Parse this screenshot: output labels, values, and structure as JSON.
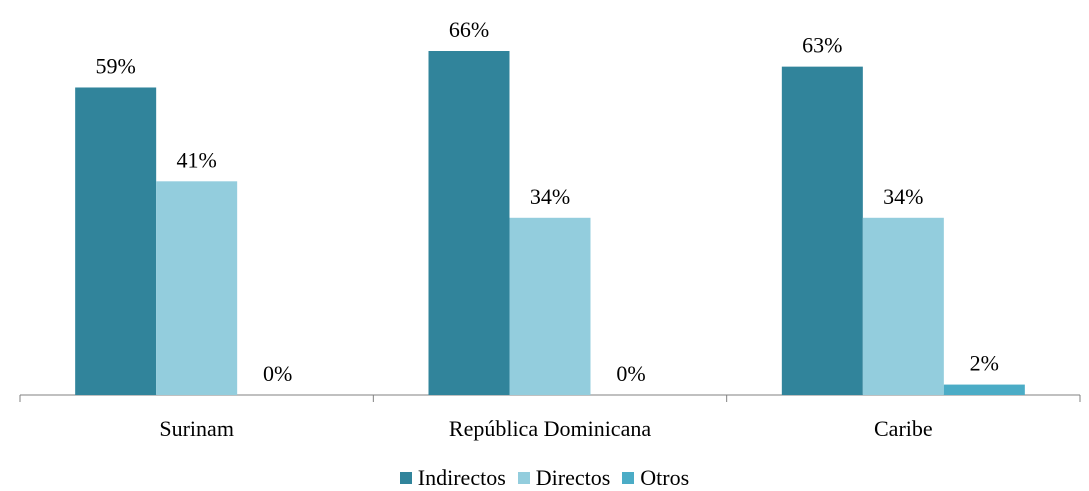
{
  "chart_data": {
    "type": "bar",
    "categories": [
      "Surinam",
      "República Dominicana",
      "Caribe"
    ],
    "series": [
      {
        "name": "Indirectos",
        "values": [
          59,
          66,
          63
        ],
        "labels": [
          "59%",
          "66%",
          "63%"
        ],
        "color": "#31849B"
      },
      {
        "name": "Directos",
        "values": [
          41,
          34,
          34
        ],
        "labels": [
          "41%",
          "34%",
          "34%"
        ],
        "color": "#93CDDD"
      },
      {
        "name": "Otros",
        "values": [
          0,
          0,
          2
        ],
        "labels": [
          "0%",
          "0%",
          "2%"
        ],
        "color": "#4BACC6"
      }
    ],
    "title": "",
    "xlabel": "",
    "ylabel": "",
    "ylim": [
      0,
      66
    ],
    "grid": false,
    "legend_position": "bottom"
  }
}
